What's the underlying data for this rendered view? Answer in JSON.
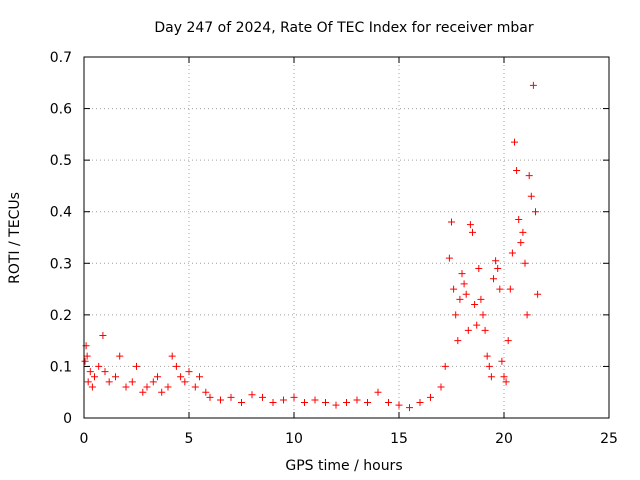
{
  "chart_data": {
    "type": "scatter",
    "title": "Day 247 of 2024, Rate Of TEC Index for receiver mbar",
    "xlabel": "GPS time / hours",
    "ylabel": "ROTI / TECUs",
    "xlim": [
      0,
      25
    ],
    "ylim": [
      0,
      0.7
    ],
    "x_ticks": [
      "0",
      "5",
      "10",
      "15",
      "20",
      "25"
    ],
    "y_ticks": [
      "0",
      "0.1",
      "0.2",
      "0.3",
      "0.4",
      "0.5",
      "0.6",
      "0.7"
    ],
    "grid": true,
    "marker": "+",
    "color": "#ff0000",
    "series": [
      {
        "x": [
          0.05,
          0.1,
          0.15,
          0.2,
          0.3,
          0.4,
          0.5,
          0.7,
          0.9,
          1.0,
          1.2,
          1.5,
          1.7,
          2.0,
          2.3,
          2.5,
          2.8,
          3.0,
          3.3,
          3.5,
          3.7,
          4.0,
          4.2,
          4.4,
          4.6,
          4.8,
          5.0,
          5.3,
          5.5,
          5.8,
          6.0,
          6.5,
          7.0,
          7.5,
          8.0,
          8.5,
          9.0,
          9.5,
          10.0,
          10.5,
          11.0,
          11.5,
          12.0,
          12.5,
          13.0,
          13.5,
          14.0,
          14.5,
          15.0,
          15.5,
          16.0,
          16.5,
          17.0,
          17.2,
          17.4,
          17.5,
          17.6,
          17.7,
          17.8,
          17.9,
          18.0,
          18.1,
          18.2,
          18.3,
          18.4,
          18.5,
          18.6,
          18.7,
          18.8,
          18.9,
          19.0,
          19.1,
          19.2,
          19.3,
          19.4,
          19.5,
          19.6,
          19.7,
          19.8,
          19.9,
          20.0,
          20.1,
          20.2,
          20.3,
          20.4,
          20.5,
          20.6,
          20.7,
          20.8,
          20.9,
          21.0,
          21.1,
          21.2,
          21.3,
          21.4,
          21.5,
          21.6
        ],
        "y": [
          0.11,
          0.14,
          0.12,
          0.07,
          0.09,
          0.06,
          0.08,
          0.1,
          0.16,
          0.09,
          0.07,
          0.08,
          0.12,
          0.06,
          0.07,
          0.1,
          0.05,
          0.06,
          0.07,
          0.08,
          0.05,
          0.06,
          0.12,
          0.1,
          0.08,
          0.07,
          0.09,
          0.06,
          0.08,
          0.05,
          0.04,
          0.035,
          0.04,
          0.03,
          0.045,
          0.04,
          0.03,
          0.035,
          0.04,
          0.03,
          0.035,
          0.03,
          0.025,
          0.03,
          0.035,
          0.03,
          0.05,
          0.03,
          0.025,
          0.02,
          0.03,
          0.04,
          0.06,
          0.1,
          0.31,
          0.38,
          0.25,
          0.2,
          0.15,
          0.23,
          0.28,
          0.26,
          0.24,
          0.17,
          0.375,
          0.36,
          0.22,
          0.18,
          0.29,
          0.23,
          0.2,
          0.17,
          0.12,
          0.1,
          0.08,
          0.27,
          0.305,
          0.29,
          0.25,
          0.11,
          0.08,
          0.07,
          0.15,
          0.25,
          0.32,
          0.535,
          0.48,
          0.385,
          0.34,
          0.36,
          0.3,
          0.2,
          0.47,
          0.43,
          0.645,
          0.4,
          0.24
        ]
      }
    ]
  }
}
